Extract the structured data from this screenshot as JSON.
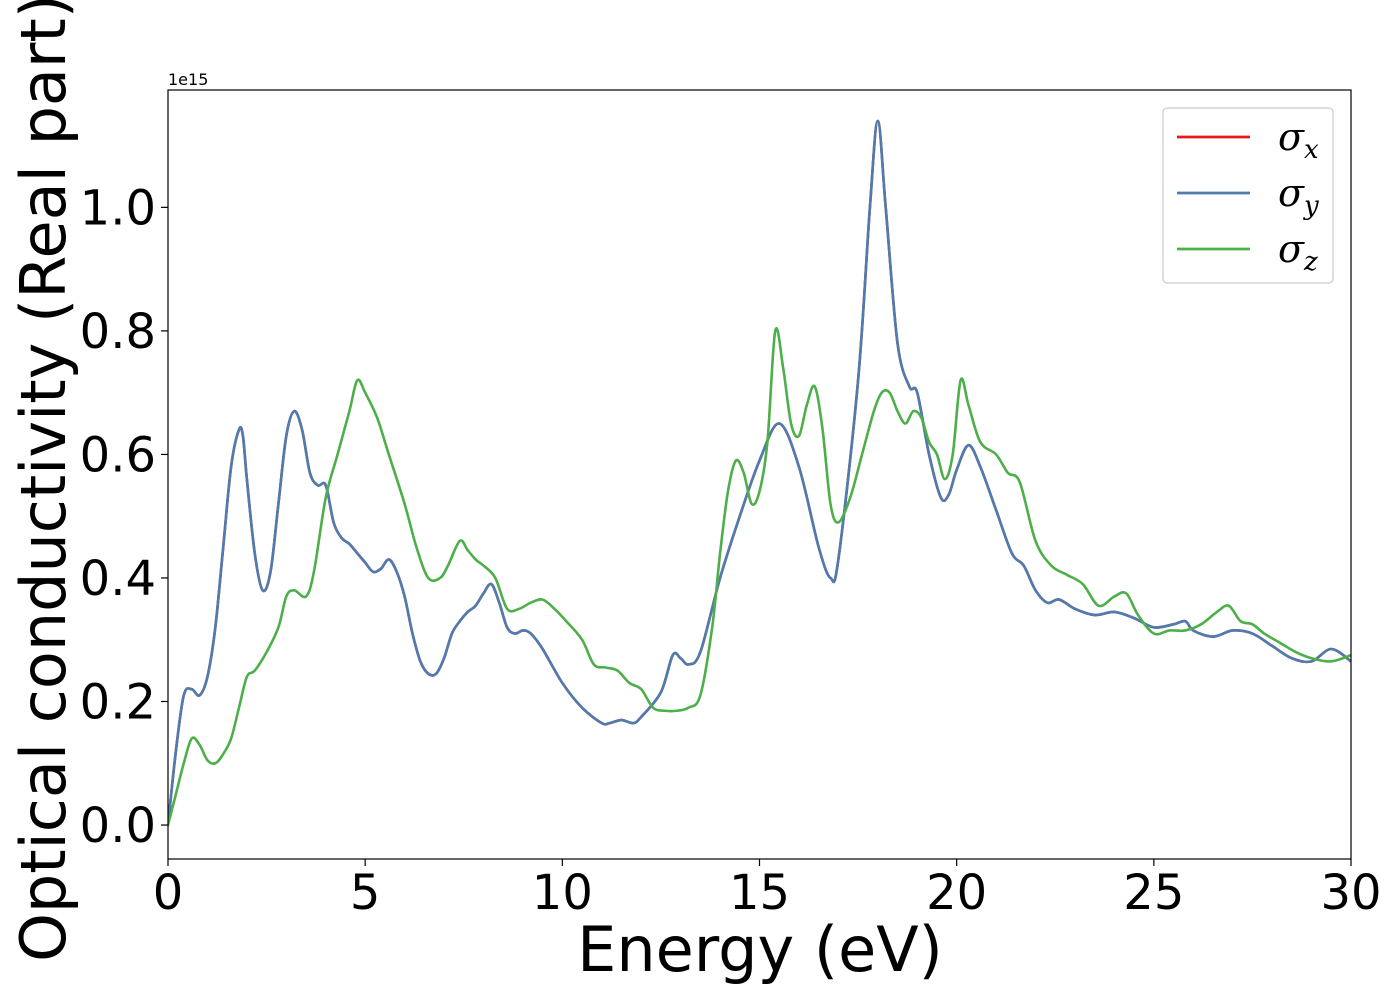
{
  "chart_data": {
    "type": "line",
    "xlabel": "Energy (eV)",
    "ylabel": "Optical conductivity (Real part)",
    "offset_text": "1e15",
    "xlim": [
      0,
      30
    ],
    "ylim": [
      -0.055,
      1.19
    ],
    "x_ticks": [
      0,
      5,
      10,
      15,
      20,
      25,
      30
    ],
    "x_tick_labels": [
      "0",
      "5",
      "10",
      "15",
      "20",
      "25",
      "30"
    ],
    "y_ticks": [
      0.0,
      0.2,
      0.4,
      0.6,
      0.8,
      1.0
    ],
    "y_tick_labels": [
      "0.0",
      "0.2",
      "0.4",
      "0.6",
      "0.8",
      "1.0"
    ],
    "grid": false,
    "legend_position": "top-right",
    "series": [
      {
        "name": "x",
        "legend_symbol": "σ",
        "legend_sub": "x",
        "color": "#e41a1c",
        "x": [
          0,
          0.2,
          0.4,
          0.6,
          0.8,
          1.0,
          1.2,
          1.4,
          1.6,
          1.8,
          1.9,
          2.0,
          2.2,
          2.4,
          2.6,
          2.8,
          3.0,
          3.2,
          3.4,
          3.6,
          3.8,
          4.0,
          4.2,
          4.4,
          4.6,
          4.8,
          5.0,
          5.2,
          5.4,
          5.6,
          5.8,
          6.0,
          6.2,
          6.4,
          6.6,
          6.8,
          7.0,
          7.2,
          7.4,
          7.6,
          7.8,
          8.0,
          8.2,
          8.4,
          8.6,
          8.8,
          9.0,
          9.2,
          9.5,
          10.0,
          10.5,
          11.0,
          11.2,
          11.5,
          11.8,
          12.0,
          12.5,
          12.8,
          13.0,
          13.2,
          13.5,
          14.0,
          14.5,
          15.0,
          15.5,
          16.0,
          16.5,
          16.8,
          17.0,
          17.5,
          17.8,
          18.0,
          18.2,
          18.5,
          18.8,
          19.0,
          19.3,
          19.6,
          19.8,
          20.0,
          20.3,
          20.6,
          21.0,
          21.4,
          21.7,
          22.0,
          22.3,
          22.6,
          23.0,
          23.5,
          24.0,
          24.5,
          25.0,
          25.5,
          25.8,
          26.0,
          26.5,
          27.0,
          27.5,
          28.0,
          28.5,
          29.0,
          29.5,
          30.0
        ],
        "y": [
          0.0,
          0.12,
          0.21,
          0.22,
          0.21,
          0.24,
          0.32,
          0.45,
          0.58,
          0.64,
          0.63,
          0.56,
          0.44,
          0.38,
          0.41,
          0.52,
          0.63,
          0.67,
          0.64,
          0.57,
          0.55,
          0.55,
          0.49,
          0.465,
          0.455,
          0.44,
          0.425,
          0.41,
          0.415,
          0.43,
          0.41,
          0.37,
          0.31,
          0.265,
          0.245,
          0.245,
          0.27,
          0.31,
          0.33,
          0.345,
          0.355,
          0.375,
          0.39,
          0.36,
          0.32,
          0.31,
          0.315,
          0.31,
          0.285,
          0.23,
          0.19,
          0.165,
          0.165,
          0.17,
          0.165,
          0.175,
          0.215,
          0.275,
          0.27,
          0.26,
          0.28,
          0.4,
          0.5,
          0.59,
          0.65,
          0.58,
          0.45,
          0.4,
          0.43,
          0.72,
          1.0,
          1.14,
          1.0,
          0.78,
          0.71,
          0.7,
          0.6,
          0.53,
          0.535,
          0.575,
          0.615,
          0.58,
          0.51,
          0.44,
          0.42,
          0.38,
          0.36,
          0.365,
          0.35,
          0.34,
          0.345,
          0.335,
          0.32,
          0.325,
          0.33,
          0.315,
          0.305,
          0.315,
          0.31,
          0.29,
          0.27,
          0.265,
          0.285,
          0.265
        ]
      },
      {
        "name": "y",
        "legend_symbol": "σ",
        "legend_sub": "y",
        "color": "#4d7cb0",
        "x": [
          0,
          0.2,
          0.4,
          0.6,
          0.8,
          1.0,
          1.2,
          1.4,
          1.6,
          1.8,
          1.9,
          2.0,
          2.2,
          2.4,
          2.6,
          2.8,
          3.0,
          3.2,
          3.4,
          3.6,
          3.8,
          4.0,
          4.2,
          4.4,
          4.6,
          4.8,
          5.0,
          5.2,
          5.4,
          5.6,
          5.8,
          6.0,
          6.2,
          6.4,
          6.6,
          6.8,
          7.0,
          7.2,
          7.4,
          7.6,
          7.8,
          8.0,
          8.2,
          8.4,
          8.6,
          8.8,
          9.0,
          9.2,
          9.5,
          10.0,
          10.5,
          11.0,
          11.2,
          11.5,
          11.8,
          12.0,
          12.5,
          12.8,
          13.0,
          13.2,
          13.5,
          14.0,
          14.5,
          15.0,
          15.5,
          16.0,
          16.5,
          16.8,
          17.0,
          17.5,
          17.8,
          18.0,
          18.2,
          18.5,
          18.8,
          19.0,
          19.3,
          19.6,
          19.8,
          20.0,
          20.3,
          20.6,
          21.0,
          21.4,
          21.7,
          22.0,
          22.3,
          22.6,
          23.0,
          23.5,
          24.0,
          24.5,
          25.0,
          25.5,
          25.8,
          26.0,
          26.5,
          27.0,
          27.5,
          28.0,
          28.5,
          29.0,
          29.5,
          30.0
        ],
        "y": [
          0.0,
          0.12,
          0.21,
          0.22,
          0.21,
          0.24,
          0.32,
          0.45,
          0.58,
          0.64,
          0.63,
          0.56,
          0.44,
          0.38,
          0.41,
          0.52,
          0.63,
          0.67,
          0.64,
          0.57,
          0.55,
          0.55,
          0.49,
          0.465,
          0.455,
          0.44,
          0.425,
          0.41,
          0.415,
          0.43,
          0.41,
          0.37,
          0.31,
          0.265,
          0.245,
          0.245,
          0.27,
          0.31,
          0.33,
          0.345,
          0.355,
          0.375,
          0.39,
          0.36,
          0.32,
          0.31,
          0.315,
          0.31,
          0.285,
          0.23,
          0.19,
          0.165,
          0.165,
          0.17,
          0.165,
          0.175,
          0.215,
          0.275,
          0.27,
          0.26,
          0.28,
          0.4,
          0.5,
          0.59,
          0.65,
          0.58,
          0.45,
          0.4,
          0.43,
          0.72,
          1.0,
          1.14,
          1.0,
          0.78,
          0.71,
          0.7,
          0.6,
          0.53,
          0.535,
          0.575,
          0.615,
          0.58,
          0.51,
          0.44,
          0.42,
          0.38,
          0.36,
          0.365,
          0.35,
          0.34,
          0.345,
          0.335,
          0.32,
          0.325,
          0.33,
          0.315,
          0.305,
          0.315,
          0.31,
          0.29,
          0.27,
          0.265,
          0.285,
          0.265
        ]
      },
      {
        "name": "z",
        "legend_symbol": "σ",
        "legend_sub": "z",
        "color": "#4daf4a",
        "x": [
          0,
          0.2,
          0.4,
          0.6,
          0.8,
          1.0,
          1.2,
          1.4,
          1.6,
          1.8,
          2.0,
          2.2,
          2.5,
          2.8,
          3.0,
          3.2,
          3.5,
          3.7,
          4.0,
          4.3,
          4.6,
          4.8,
          5.0,
          5.3,
          5.6,
          6.0,
          6.3,
          6.6,
          6.9,
          7.1,
          7.4,
          7.6,
          7.8,
          8.0,
          8.3,
          8.6,
          8.9,
          9.2,
          9.5,
          9.8,
          10.1,
          10.5,
          10.8,
          11.1,
          11.4,
          11.7,
          12.0,
          12.3,
          12.6,
          12.9,
          13.2,
          13.5,
          13.8,
          14.0,
          14.2,
          14.4,
          14.6,
          14.8,
          15.0,
          15.2,
          15.4,
          15.6,
          15.8,
          16.0,
          16.2,
          16.4,
          16.6,
          16.8,
          17.0,
          17.3,
          17.6,
          17.9,
          18.1,
          18.3,
          18.5,
          18.7,
          18.9,
          19.1,
          19.3,
          19.5,
          19.7,
          19.9,
          20.1,
          20.3,
          20.6,
          21.0,
          21.3,
          21.6,
          22.0,
          22.4,
          22.8,
          23.2,
          23.6,
          24.0,
          24.3,
          24.6,
          25.0,
          25.4,
          25.8,
          26.2,
          26.6,
          26.9,
          27.2,
          27.5,
          27.8,
          28.2,
          28.6,
          29.0,
          29.5,
          30.0
        ],
        "y": [
          0.0,
          0.05,
          0.1,
          0.14,
          0.13,
          0.105,
          0.1,
          0.115,
          0.14,
          0.19,
          0.24,
          0.25,
          0.28,
          0.32,
          0.37,
          0.38,
          0.37,
          0.41,
          0.53,
          0.6,
          0.67,
          0.72,
          0.7,
          0.66,
          0.6,
          0.52,
          0.45,
          0.4,
          0.4,
          0.42,
          0.46,
          0.445,
          0.43,
          0.42,
          0.4,
          0.35,
          0.35,
          0.36,
          0.365,
          0.35,
          0.33,
          0.3,
          0.26,
          0.255,
          0.25,
          0.23,
          0.22,
          0.19,
          0.185,
          0.185,
          0.19,
          0.21,
          0.32,
          0.44,
          0.54,
          0.59,
          0.57,
          0.52,
          0.54,
          0.62,
          0.8,
          0.74,
          0.65,
          0.63,
          0.68,
          0.71,
          0.64,
          0.52,
          0.49,
          0.53,
          0.6,
          0.67,
          0.7,
          0.7,
          0.67,
          0.65,
          0.67,
          0.66,
          0.62,
          0.6,
          0.56,
          0.6,
          0.72,
          0.68,
          0.62,
          0.6,
          0.57,
          0.555,
          0.46,
          0.42,
          0.405,
          0.39,
          0.355,
          0.37,
          0.375,
          0.34,
          0.31,
          0.315,
          0.315,
          0.325,
          0.345,
          0.355,
          0.33,
          0.325,
          0.31,
          0.295,
          0.28,
          0.27,
          0.265,
          0.275
        ]
      }
    ]
  }
}
